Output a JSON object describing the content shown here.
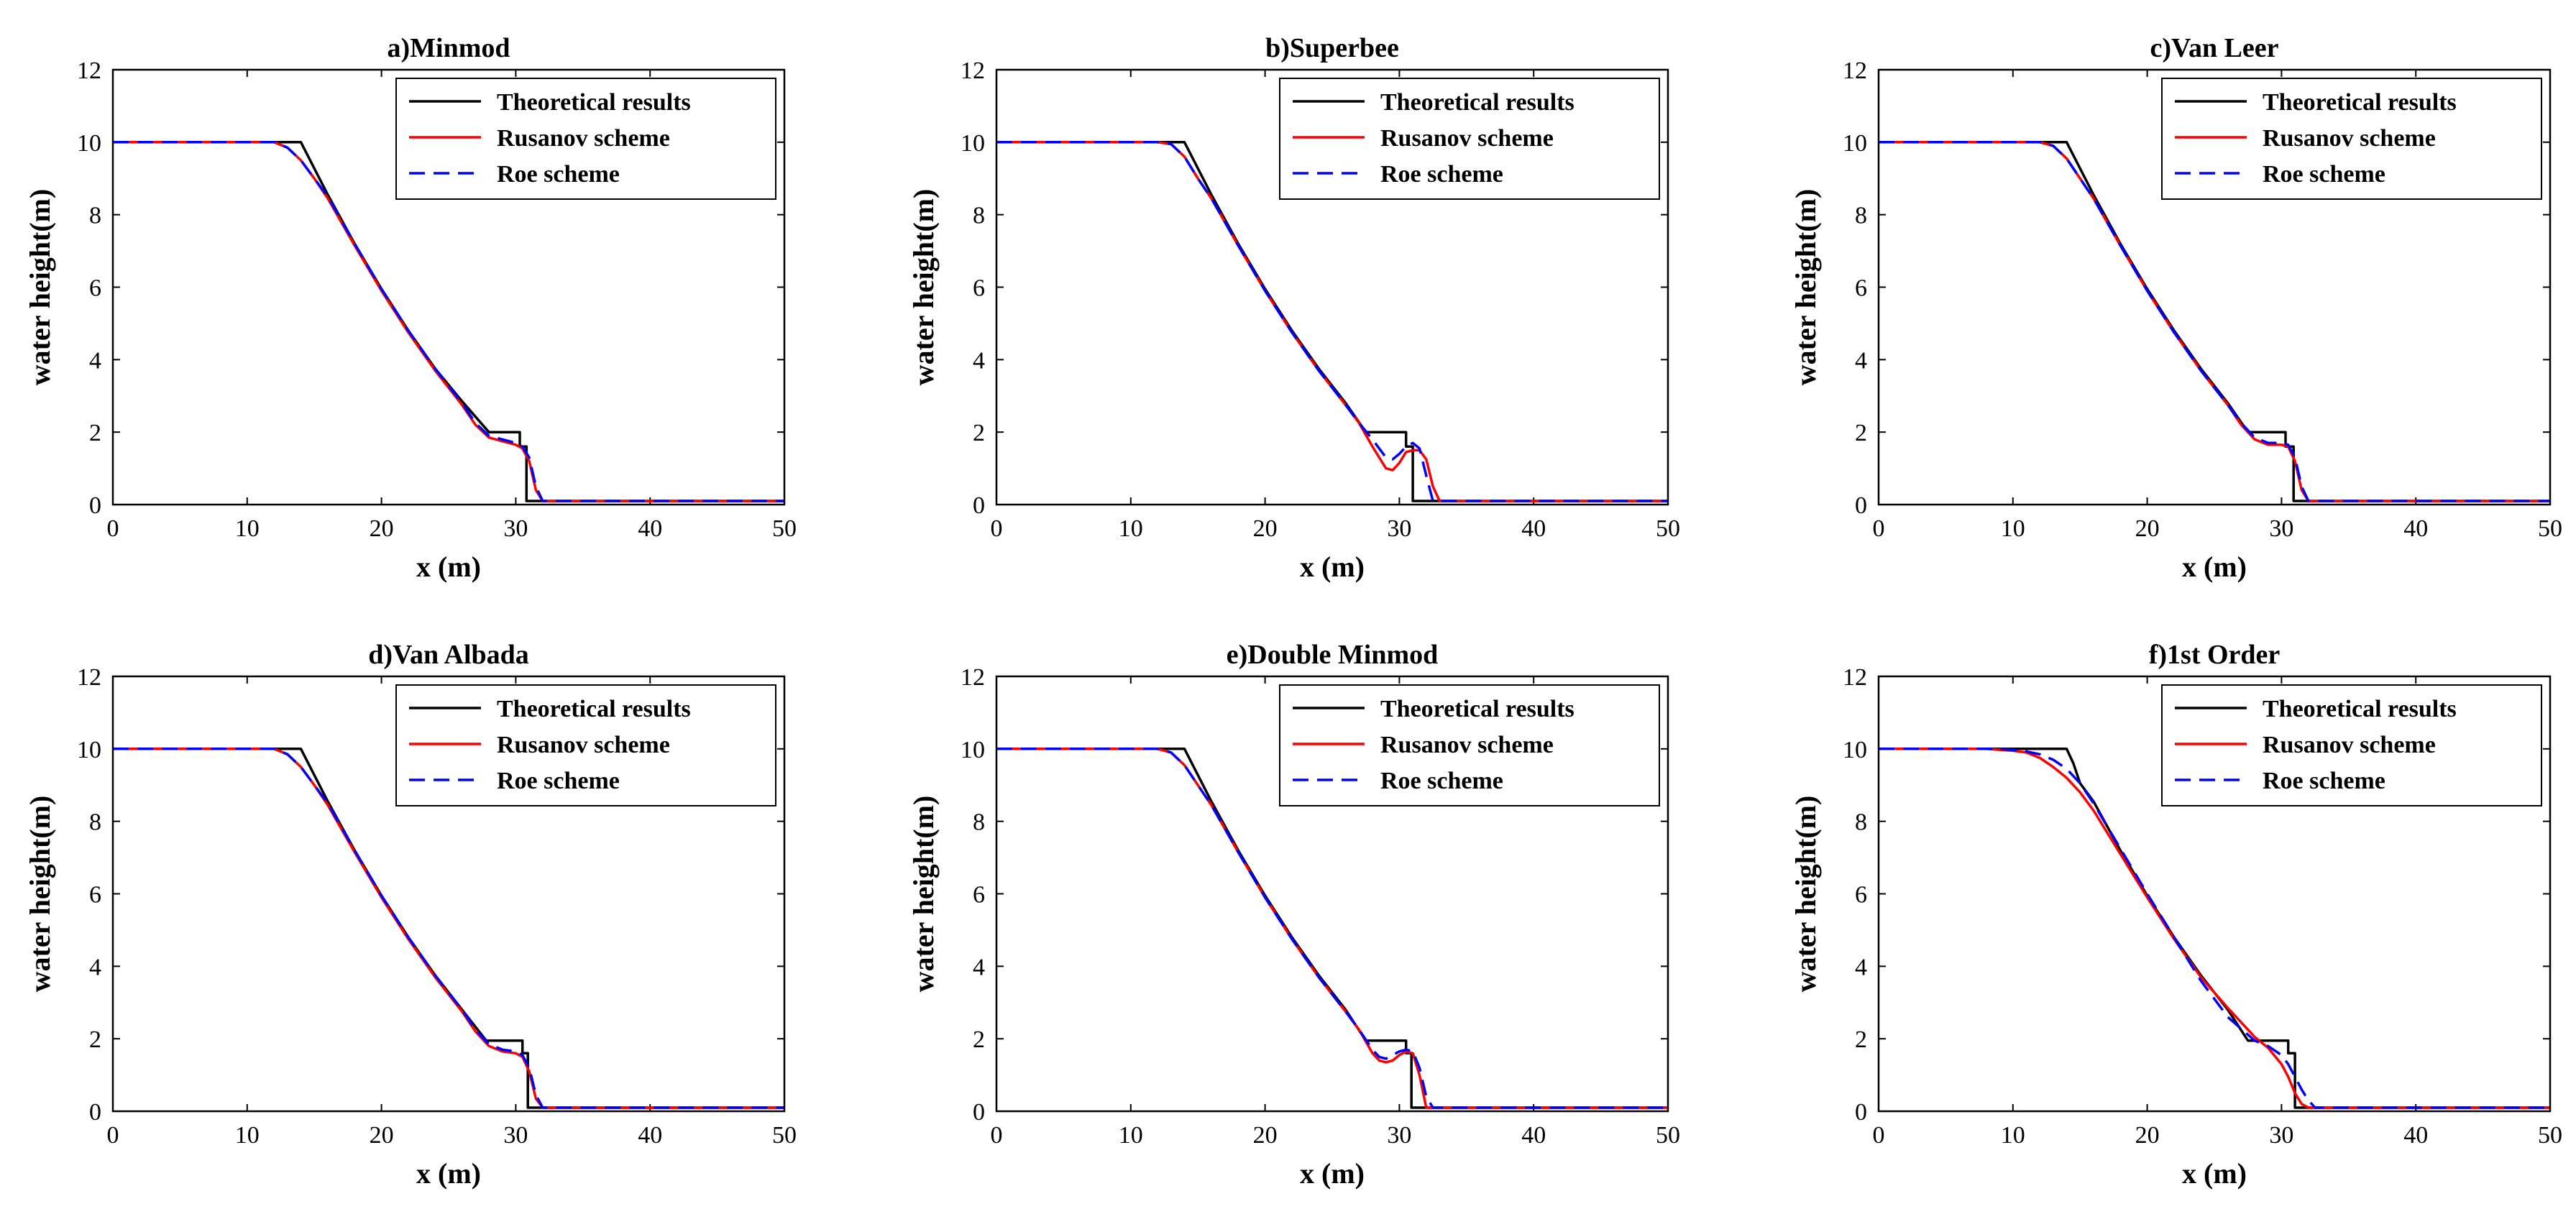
{
  "figure": {
    "background": "#ffffff"
  },
  "legend": {
    "location": "top-right",
    "entries": [
      {
        "label": "Theoretical results",
        "color": "#000000",
        "style": "solid"
      },
      {
        "label": "Rusanov scheme",
        "color": "#ff0000",
        "style": "solid"
      },
      {
        "label": "Roe scheme",
        "color": "#0000ff",
        "style": "dashed"
      }
    ]
  },
  "chart_data": [
    {
      "type": "line",
      "title": "a)Minmod",
      "xlabel": "x (m)",
      "ylabel": "water height(m)",
      "xlim": [
        0,
        50
      ],
      "ylim": [
        0,
        12
      ],
      "xticks": [
        0,
        10,
        20,
        30,
        40,
        50
      ],
      "yticks": [
        0,
        2,
        4,
        6,
        8,
        10,
        12
      ],
      "series": [
        {
          "name": "Theoretical results",
          "color": "#000000",
          "dash": "solid",
          "x": [
            0,
            14,
            16,
            18,
            20,
            22,
            24,
            26,
            28,
            30.3,
            30.3,
            30.8,
            30.8,
            50
          ],
          "y": [
            10,
            10,
            8.55,
            7.2,
            5.95,
            4.8,
            3.75,
            2.85,
            2.0,
            2.0,
            1.6,
            1.6,
            0.1,
            0.1
          ]
        },
        {
          "name": "Rusanov scheme",
          "color": "#ff0000",
          "dash": "solid",
          "x": [
            0,
            12,
            13,
            14,
            15,
            16,
            18,
            20,
            22,
            24,
            26,
            27,
            28,
            29,
            30,
            30.5,
            31,
            31.5,
            32,
            50
          ],
          "y": [
            10,
            10,
            9.85,
            9.5,
            9.0,
            8.45,
            7.15,
            5.9,
            4.75,
            3.7,
            2.75,
            2.2,
            1.85,
            1.75,
            1.65,
            1.55,
            1.2,
            0.4,
            0.1,
            0.1
          ]
        },
        {
          "name": "Roe scheme",
          "color": "#0000ff",
          "dash": "dashed",
          "x": [
            0,
            12,
            13,
            14,
            15,
            16,
            18,
            20,
            22,
            24,
            26,
            27,
            28,
            29,
            30,
            30.5,
            31,
            31.5,
            32,
            50
          ],
          "y": [
            10,
            10,
            9.85,
            9.5,
            9.0,
            8.5,
            7.2,
            5.95,
            4.8,
            3.75,
            2.8,
            2.25,
            1.9,
            1.8,
            1.7,
            1.6,
            1.3,
            0.5,
            0.1,
            0.1
          ]
        }
      ]
    },
    {
      "type": "line",
      "title": "b)Superbee",
      "xlabel": "x (m)",
      "ylabel": "water height(m)",
      "xlim": [
        0,
        50
      ],
      "ylim": [
        0,
        12
      ],
      "xticks": [
        0,
        10,
        20,
        30,
        40,
        50
      ],
      "yticks": [
        0,
        2,
        4,
        6,
        8,
        10,
        12
      ],
      "series": [
        {
          "name": "Theoretical results",
          "color": "#000000",
          "dash": "solid",
          "x": [
            0,
            14,
            16,
            18,
            20,
            22,
            24,
            26,
            27.5,
            30.5,
            30.5,
            31,
            31,
            50
          ],
          "y": [
            10,
            10,
            8.55,
            7.2,
            5.95,
            4.8,
            3.75,
            2.8,
            2.0,
            2.0,
            1.6,
            1.6,
            0.1,
            0.1
          ]
        },
        {
          "name": "Rusanov scheme",
          "color": "#ff0000",
          "dash": "solid",
          "x": [
            0,
            12,
            13,
            14,
            15,
            16,
            18,
            20,
            22,
            24,
            26,
            27,
            28,
            29,
            29.5,
            30,
            30.5,
            31,
            31.5,
            32,
            32.5,
            33,
            50
          ],
          "y": [
            10,
            10,
            9.95,
            9.6,
            9.0,
            8.45,
            7.15,
            5.9,
            4.75,
            3.7,
            2.75,
            2.25,
            1.6,
            1.0,
            0.95,
            1.15,
            1.45,
            1.5,
            1.5,
            1.25,
            0.5,
            0.1,
            0.1
          ]
        },
        {
          "name": "Roe scheme",
          "color": "#0000ff",
          "dash": "dashed",
          "x": [
            0,
            12,
            13,
            14,
            15,
            16,
            18,
            20,
            22,
            24,
            26,
            27,
            28,
            29,
            29.5,
            30,
            30.5,
            31,
            31.5,
            32,
            32.5,
            50
          ],
          "y": [
            10,
            10,
            9.95,
            9.6,
            9.0,
            8.45,
            7.15,
            5.9,
            4.75,
            3.7,
            2.75,
            2.25,
            1.8,
            1.3,
            1.25,
            1.4,
            1.6,
            1.7,
            1.55,
            0.8,
            0.1,
            0.1
          ]
        }
      ]
    },
    {
      "type": "line",
      "title": "c)Van Leer",
      "xlabel": "x (m)",
      "ylabel": "water height(m)",
      "xlim": [
        0,
        50
      ],
      "ylim": [
        0,
        12
      ],
      "xticks": [
        0,
        10,
        20,
        30,
        40,
        50
      ],
      "yticks": [
        0,
        2,
        4,
        6,
        8,
        10,
        12
      ],
      "series": [
        {
          "name": "Theoretical results",
          "color": "#000000",
          "dash": "solid",
          "x": [
            0,
            14,
            16,
            18,
            20,
            22,
            24,
            26,
            27.5,
            30.3,
            30.3,
            30.9,
            30.9,
            50
          ],
          "y": [
            10,
            10,
            8.55,
            7.2,
            5.95,
            4.8,
            3.75,
            2.8,
            2.0,
            2.0,
            1.6,
            1.6,
            0.1,
            0.1
          ]
        },
        {
          "name": "Rusanov scheme",
          "color": "#ff0000",
          "dash": "solid",
          "x": [
            0,
            12,
            13,
            14,
            15,
            16,
            18,
            20,
            22,
            24,
            26,
            27,
            28,
            29,
            30,
            30.5,
            31,
            31.5,
            32,
            50
          ],
          "y": [
            10,
            10,
            9.9,
            9.55,
            9.0,
            8.45,
            7.15,
            5.9,
            4.75,
            3.7,
            2.75,
            2.2,
            1.8,
            1.65,
            1.65,
            1.6,
            1.2,
            0.4,
            0.1,
            0.1
          ]
        },
        {
          "name": "Roe scheme",
          "color": "#0000ff",
          "dash": "dashed",
          "x": [
            0,
            12,
            13,
            14,
            15,
            16,
            18,
            20,
            22,
            24,
            26,
            27,
            28,
            29,
            30,
            30.5,
            31,
            31.5,
            32,
            50
          ],
          "y": [
            10,
            10,
            9.9,
            9.55,
            9.0,
            8.45,
            7.15,
            5.9,
            4.75,
            3.7,
            2.75,
            2.25,
            1.85,
            1.7,
            1.7,
            1.65,
            1.3,
            0.5,
            0.1,
            0.1
          ]
        }
      ]
    },
    {
      "type": "line",
      "title": "d)Van Albada",
      "xlabel": "x (m)",
      "ylabel": "water height(m)",
      "xlim": [
        0,
        50
      ],
      "ylim": [
        0,
        12
      ],
      "xticks": [
        0,
        10,
        20,
        30,
        40,
        50
      ],
      "yticks": [
        0,
        2,
        4,
        6,
        8,
        10,
        12
      ],
      "series": [
        {
          "name": "Theoretical results",
          "color": "#000000",
          "dash": "solid",
          "x": [
            0,
            14,
            16,
            18,
            20,
            22,
            24,
            26,
            27.8,
            30.5,
            30.5,
            30.9,
            30.9,
            50
          ],
          "y": [
            10,
            10,
            8.55,
            7.2,
            5.95,
            4.8,
            3.75,
            2.8,
            1.95,
            1.95,
            1.6,
            1.6,
            0.1,
            0.1
          ]
        },
        {
          "name": "Rusanov scheme",
          "color": "#ff0000",
          "dash": "solid",
          "x": [
            0,
            12,
            13,
            14,
            15,
            16,
            18,
            20,
            22,
            24,
            26,
            27,
            28,
            29,
            30,
            30.5,
            31,
            31.5,
            32,
            50
          ],
          "y": [
            10,
            10,
            9.85,
            9.5,
            9.0,
            8.45,
            7.15,
            5.9,
            4.75,
            3.7,
            2.75,
            2.2,
            1.8,
            1.65,
            1.6,
            1.5,
            1.1,
            0.35,
            0.1,
            0.1
          ]
        },
        {
          "name": "Roe scheme",
          "color": "#0000ff",
          "dash": "dashed",
          "x": [
            0,
            12,
            13,
            14,
            15,
            16,
            18,
            20,
            22,
            24,
            26,
            27,
            28,
            29,
            30,
            30.5,
            31,
            31.5,
            32,
            50
          ],
          "y": [
            10,
            10,
            9.85,
            9.5,
            9.0,
            8.5,
            7.2,
            5.95,
            4.8,
            3.75,
            2.8,
            2.25,
            1.85,
            1.7,
            1.65,
            1.55,
            1.2,
            0.45,
            0.1,
            0.1
          ]
        }
      ]
    },
    {
      "type": "line",
      "title": "e)Double Minmod",
      "xlabel": "x (m)",
      "ylabel": "water height(m)",
      "xlim": [
        0,
        50
      ],
      "ylim": [
        0,
        12
      ],
      "xticks": [
        0,
        10,
        20,
        30,
        40,
        50
      ],
      "yticks": [
        0,
        2,
        4,
        6,
        8,
        10,
        12
      ],
      "series": [
        {
          "name": "Theoretical results",
          "color": "#000000",
          "dash": "solid",
          "x": [
            0,
            14,
            16,
            18,
            20,
            22,
            24,
            26,
            27.5,
            30.5,
            30.5,
            30.9,
            30.9,
            50
          ],
          "y": [
            10,
            10,
            8.55,
            7.2,
            5.95,
            4.8,
            3.75,
            2.8,
            1.95,
            1.95,
            1.6,
            1.6,
            0.1,
            0.1
          ]
        },
        {
          "name": "Rusanov scheme",
          "color": "#ff0000",
          "dash": "solid",
          "x": [
            0,
            12,
            13,
            14,
            15,
            16,
            18,
            20,
            22,
            24,
            26,
            27,
            28,
            28.5,
            29,
            29.5,
            30,
            30.5,
            31,
            31.5,
            32,
            50
          ],
          "y": [
            10,
            10,
            9.9,
            9.55,
            9.0,
            8.45,
            7.15,
            5.9,
            4.75,
            3.7,
            2.75,
            2.25,
            1.6,
            1.4,
            1.35,
            1.4,
            1.55,
            1.65,
            1.6,
            1.0,
            0.1,
            0.1
          ]
        },
        {
          "name": "Roe scheme",
          "color": "#0000ff",
          "dash": "dashed",
          "x": [
            0,
            12,
            13,
            14,
            15,
            16,
            18,
            20,
            22,
            24,
            26,
            27,
            28,
            28.5,
            29,
            29.5,
            30,
            30.5,
            31,
            31.5,
            32,
            32.5,
            50
          ],
          "y": [
            10,
            10,
            9.9,
            9.55,
            9.0,
            8.45,
            7.15,
            5.9,
            4.75,
            3.7,
            2.75,
            2.25,
            1.7,
            1.5,
            1.45,
            1.55,
            1.65,
            1.7,
            1.65,
            1.2,
            0.4,
            0.1,
            0.1
          ]
        }
      ]
    },
    {
      "type": "line",
      "title": "f)1st Order",
      "xlabel": "x (m)",
      "ylabel": "water height(m)",
      "xlim": [
        0,
        50
      ],
      "ylim": [
        0,
        12
      ],
      "xticks": [
        0,
        10,
        20,
        30,
        40,
        50
      ],
      "yticks": [
        0,
        2,
        4,
        6,
        8,
        10,
        12
      ],
      "series": [
        {
          "name": "Theoretical results",
          "color": "#000000",
          "dash": "solid",
          "x": [
            0,
            14,
            14.5,
            15,
            16,
            18,
            20,
            22,
            24,
            26,
            27.5,
            30.5,
            30.5,
            31,
            31,
            50
          ],
          "y": [
            10,
            10,
            9.6,
            9.05,
            8.55,
            7.2,
            5.95,
            4.8,
            3.75,
            2.8,
            1.95,
            1.95,
            1.6,
            1.6,
            0.1,
            0.1
          ]
        },
        {
          "name": "Rusanov scheme",
          "color": "#ff0000",
          "dash": "solid",
          "x": [
            0,
            8,
            10,
            11,
            12,
            13,
            14,
            15,
            16,
            18,
            20,
            22,
            24,
            26,
            28,
            29,
            30,
            30.5,
            31,
            31.5,
            32,
            50
          ],
          "y": [
            10,
            10,
            9.95,
            9.9,
            9.75,
            9.5,
            9.2,
            8.8,
            8.3,
            7.1,
            5.9,
            4.75,
            3.7,
            2.85,
            2.05,
            1.75,
            1.3,
            0.95,
            0.5,
            0.2,
            0.1,
            0.1
          ]
        },
        {
          "name": "Roe scheme",
          "color": "#0000ff",
          "dash": "dashed",
          "x": [
            0,
            9,
            10,
            11,
            12,
            13,
            14,
            15,
            16,
            18,
            20,
            22,
            24,
            26,
            28,
            29,
            30,
            30.5,
            31,
            31.5,
            32,
            32.5,
            50
          ],
          "y": [
            10,
            10,
            9.97,
            9.93,
            9.85,
            9.7,
            9.45,
            9.05,
            8.5,
            7.25,
            6.0,
            4.8,
            3.6,
            2.6,
            1.95,
            1.8,
            1.55,
            1.3,
            0.95,
            0.6,
            0.3,
            0.1,
            0.1
          ]
        }
      ]
    }
  ]
}
